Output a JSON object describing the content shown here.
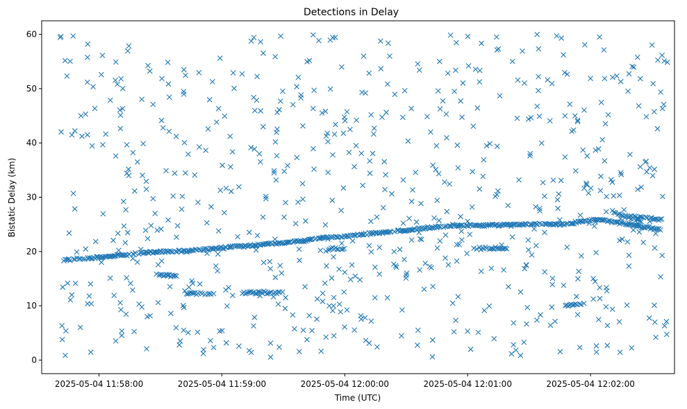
{
  "chart_data": {
    "type": "scatter",
    "title": "Detections in Delay",
    "xlabel": "Time (UTC)",
    "ylabel": "Bistatic Delay (km)",
    "marker": "x",
    "color": "#1f77b4",
    "grid": false,
    "xlim": [
      "2025-05-04 11:57:32",
      "2025-05-04 12:02:41"
    ],
    "ylim": [
      -2.5,
      62.5
    ],
    "x_ticks": [
      "2025-05-04 11:58:00",
      "2025-05-04 11:59:00",
      "2025-05-04 12:00:00",
      "2025-05-04 12:01:00",
      "2025-05-04 12:02:00"
    ],
    "y_ticks": [
      0,
      10,
      20,
      30,
      40,
      50,
      60
    ],
    "series": [
      {
        "track_points": [
          [
            "2025-05-04 11:57:43",
            18.5
          ],
          [
            "2025-05-04 11:57:50",
            18.6
          ],
          [
            "2025-05-04 11:57:57",
            18.8
          ],
          [
            "2025-05-04 11:58:03",
            19.0
          ],
          [
            "2025-05-04 11:58:10",
            19.3
          ],
          [
            "2025-05-04 11:58:20",
            19.7
          ],
          [
            "2025-05-04 11:58:30",
            19.9
          ],
          [
            "2025-05-04 11:58:40",
            20.1
          ],
          [
            "2025-05-04 11:58:50",
            20.4
          ],
          [
            "2025-05-04 11:59:00",
            20.7
          ],
          [
            "2025-05-04 11:59:10",
            21.0
          ],
          [
            "2025-05-04 11:59:20",
            21.3
          ],
          [
            "2025-05-04 11:59:30",
            21.6
          ],
          [
            "2025-05-04 11:59:40",
            22.0
          ],
          [
            "2025-05-04 11:59:45",
            22.3
          ],
          [
            "2025-05-04 11:59:50",
            22.6
          ],
          [
            "2025-05-04 12:00:00",
            22.8
          ],
          [
            "2025-05-04 12:00:10",
            23.2
          ],
          [
            "2025-05-04 12:00:20",
            23.5
          ],
          [
            "2025-05-04 12:00:30",
            23.9
          ],
          [
            "2025-05-04 12:00:40",
            24.3
          ],
          [
            "2025-05-04 12:00:50",
            24.7
          ],
          [
            "2025-05-04 12:01:00",
            24.8
          ],
          [
            "2025-05-04 12:01:15",
            24.9
          ],
          [
            "2025-05-04 12:01:30",
            25.0
          ],
          [
            "2025-05-04 12:01:47",
            25.0
          ],
          [
            "2025-05-04 12:02:02",
            25.9
          ],
          [
            "2025-05-04 12:02:10",
            25.6
          ],
          [
            "2025-05-04 12:02:18",
            25.0
          ],
          [
            "2025-05-04 12:02:26",
            24.5
          ],
          [
            "2025-05-04 12:02:34",
            24.0
          ]
        ],
        "secondary_tracks": [
          [
            [
              "2025-05-04 11:58:28",
              15.6
            ],
            [
              "2025-05-04 11:58:38",
              15.5
            ]
          ],
          [
            [
              "2025-05-04 11:58:42",
              12.3
            ],
            [
              "2025-05-04 11:58:56",
              12.2
            ]
          ],
          [
            [
              "2025-05-04 11:59:10",
              12.4
            ],
            [
              "2025-05-04 11:59:30",
              12.4
            ]
          ],
          [
            [
              "2025-05-04 11:59:52",
              20.5
            ],
            [
              "2025-05-04 12:00:00",
              20.4
            ]
          ],
          [
            [
              "2025-05-04 12:01:03",
              20.6
            ],
            [
              "2025-05-04 12:01:20",
              20.5
            ]
          ],
          [
            [
              "2025-05-04 12:01:47",
              10.0
            ],
            [
              "2025-05-04 12:01:57",
              10.2
            ]
          ],
          [
            [
              "2025-05-04 12:02:10",
              27.5
            ],
            [
              "2025-05-04 12:02:25",
              25.5
            ]
          ],
          [
            [
              "2025-05-04 12:02:20",
              26.5
            ],
            [
              "2025-05-04 12:02:35",
              25.8
            ]
          ]
        ],
        "clutter_count": 700,
        "clutter_seed": 1337
      }
    ]
  }
}
